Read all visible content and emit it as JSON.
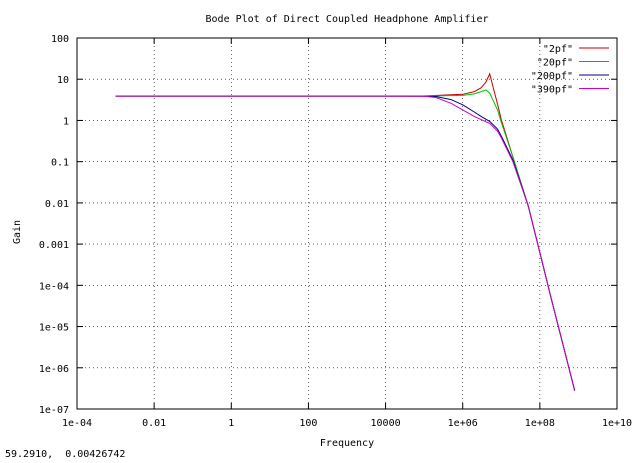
{
  "status": {
    "coordinate_readout": "59.2910,  0.00426742"
  },
  "chart_data": {
    "type": "line",
    "title": "Bode Plot of Direct Coupled Headphone Amplifier",
    "xlabel": "Frequency",
    "ylabel": "Gain",
    "x_scale": "log",
    "y_scale": "log",
    "xlim": [
      0.0001,
      10000000000
    ],
    "ylim": [
      1e-07,
      100
    ],
    "x_ticks": [
      {
        "value": 0.0001,
        "label": "1e-04"
      },
      {
        "value": 0.01,
        "label": "0.01"
      },
      {
        "value": 1,
        "label": "1"
      },
      {
        "value": 100,
        "label": "100"
      },
      {
        "value": 10000,
        "label": "10000"
      },
      {
        "value": 1000000,
        "label": "1e+06"
      },
      {
        "value": 100000000,
        "label": "1e+08"
      },
      {
        "value": 10000000000,
        "label": "1e+10"
      }
    ],
    "y_ticks": [
      {
        "value": 100,
        "label": "100"
      },
      {
        "value": 10,
        "label": "10"
      },
      {
        "value": 1,
        "label": "1"
      },
      {
        "value": 0.1,
        "label": "0.1"
      },
      {
        "value": 0.01,
        "label": "0.01"
      },
      {
        "value": 0.001,
        "label": "0.001"
      },
      {
        "value": 0.0001,
        "label": "1e-04"
      },
      {
        "value": 1e-05,
        "label": "1e-05"
      },
      {
        "value": 1e-06,
        "label": "1e-06"
      },
      {
        "value": 1e-07,
        "label": "1e-07"
      }
    ],
    "grid": true,
    "legend_position": "top-right",
    "series": [
      {
        "name": "\"2pf\"",
        "color": "#cc0000",
        "x": [
          0.001,
          10000,
          100000,
          1000000,
          2000000,
          3000000,
          4000000,
          5000000,
          6000000,
          8000000,
          10000000,
          20000000,
          50000000,
          100000000,
          200000000,
          800000000
        ],
        "y": [
          3.9,
          3.9,
          3.92,
          4.3,
          5.0,
          6.2,
          8.5,
          13.5,
          7.0,
          2.5,
          1.05,
          0.13,
          0.0085,
          0.00062,
          4.5e-05,
          2.8e-07
        ]
      },
      {
        "name": "\"20pf\"",
        "color": "#00c000",
        "x": [
          0.001,
          10000,
          100000,
          1000000,
          2000000,
          3000000,
          4000000,
          5000000,
          6000000,
          8000000,
          10000000,
          20000000,
          50000000,
          100000000,
          200000000,
          800000000
        ],
        "y": [
          3.9,
          3.9,
          3.9,
          4.05,
          4.4,
          5.0,
          5.5,
          4.6,
          3.2,
          1.8,
          0.9,
          0.13,
          0.0085,
          0.00062,
          4.5e-05,
          2.8e-07
        ]
      },
      {
        "name": "\"200pf\"",
        "color": "#000080",
        "x": [
          0.001,
          10000,
          100000,
          200000,
          500000,
          1000000,
          2000000,
          3000000,
          5000000,
          8000000,
          10000000,
          20000000,
          50000000,
          100000000,
          200000000,
          800000000
        ],
        "y": [
          3.9,
          3.9,
          3.88,
          3.8,
          3.2,
          2.4,
          1.6,
          1.25,
          0.95,
          0.62,
          0.42,
          0.11,
          0.0085,
          0.00062,
          4.5e-05,
          2.8e-07
        ]
      },
      {
        "name": "\"390pf\"",
        "color": "#cc00cc",
        "x": [
          0.001,
          10000,
          100000,
          200000,
          500000,
          1000000,
          2000000,
          3000000,
          5000000,
          8000000,
          10000000,
          20000000,
          50000000,
          100000000,
          200000000,
          800000000
        ],
        "y": [
          3.9,
          3.9,
          3.85,
          3.6,
          2.6,
          1.8,
          1.25,
          1.05,
          0.85,
          0.55,
          0.38,
          0.1,
          0.0085,
          0.00062,
          4.5e-05,
          2.8e-07
        ]
      }
    ]
  }
}
